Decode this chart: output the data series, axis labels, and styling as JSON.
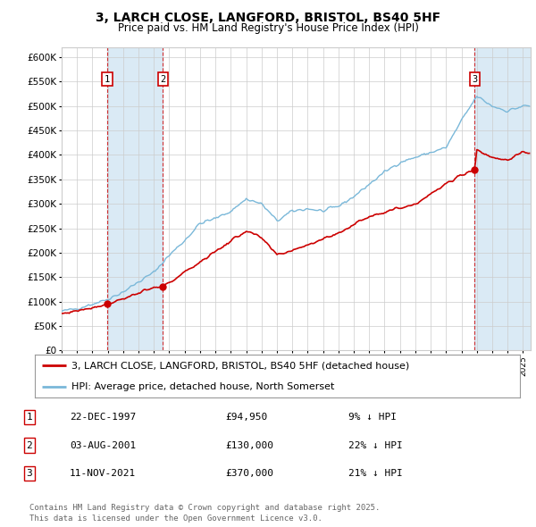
{
  "title": "3, LARCH CLOSE, LANGFORD, BRISTOL, BS40 5HF",
  "subtitle": "Price paid vs. HM Land Registry's House Price Index (HPI)",
  "ylim": [
    0,
    620000
  ],
  "yticks": [
    0,
    50000,
    100000,
    150000,
    200000,
    250000,
    300000,
    350000,
    400000,
    450000,
    500000,
    550000,
    600000
  ],
  "ytick_labels": [
    "£0",
    "£50K",
    "£100K",
    "£150K",
    "£200K",
    "£250K",
    "£300K",
    "£350K",
    "£400K",
    "£450K",
    "£500K",
    "£550K",
    "£600K"
  ],
  "hpi_color": "#7ab8d9",
  "price_color": "#cc0000",
  "vline_color": "#cc0000",
  "vshade_color": "#daeaf5",
  "sale_label_border": "#cc0000",
  "background": "#ffffff",
  "grid_color": "#cccccc",
  "sale1_date_num": 1997.97,
  "sale2_date_num": 2001.59,
  "sale3_date_num": 2021.86,
  "sale1_price": 94950,
  "sale2_price": 130000,
  "sale3_price": 370000,
  "hpi_anchors_years": [
    1995,
    1996,
    1997,
    1998,
    1999,
    2000,
    2001,
    2002,
    2003,
    2004,
    2005,
    2006,
    2007,
    2008,
    2009,
    2010,
    2011,
    2012,
    2013,
    2014,
    2015,
    2016,
    2017,
    2018,
    2019,
    2020,
    2021,
    2022,
    2023,
    2024,
    2025
  ],
  "hpi_anchors_vals": [
    80000,
    86000,
    95000,
    105000,
    120000,
    140000,
    160000,
    195000,
    225000,
    260000,
    270000,
    285000,
    310000,
    300000,
    265000,
    285000,
    290000,
    285000,
    295000,
    315000,
    340000,
    365000,
    385000,
    395000,
    405000,
    415000,
    470000,
    520000,
    500000,
    490000,
    500000
  ],
  "price_anchors_years": [
    1995,
    1997,
    1997.97,
    2001,
    2001.59,
    2007,
    2008,
    2009,
    2010,
    2013,
    2015,
    2018,
    2021,
    2021.86,
    2022,
    2023,
    2024,
    2025
  ],
  "price_anchors_vals": [
    75000,
    88000,
    94950,
    128000,
    130000,
    245000,
    230000,
    195000,
    205000,
    240000,
    275000,
    300000,
    360000,
    370000,
    410000,
    395000,
    390000,
    405000
  ],
  "legend_line1": "3, LARCH CLOSE, LANGFORD, BRISTOL, BS40 5HF (detached house)",
  "legend_line2": "HPI: Average price, detached house, North Somerset",
  "table_data": [
    [
      "1",
      "22-DEC-1997",
      "£94,950",
      "9% ↓ HPI"
    ],
    [
      "2",
      "03-AUG-2001",
      "£130,000",
      "22% ↓ HPI"
    ],
    [
      "3",
      "11-NOV-2021",
      "£370,000",
      "21% ↓ HPI"
    ]
  ],
  "footer": "Contains HM Land Registry data © Crown copyright and database right 2025.\nThis data is licensed under the Open Government Licence v3.0."
}
